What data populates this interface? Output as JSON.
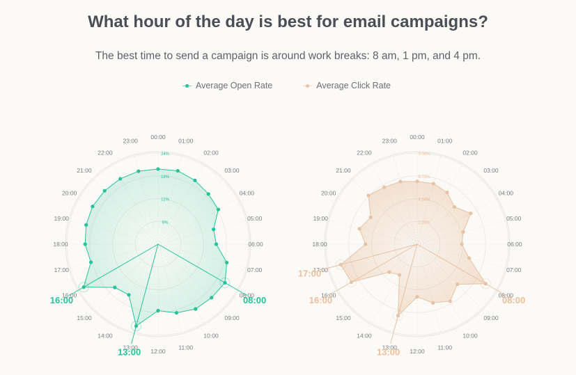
{
  "header": {
    "title": "What hour of the day is best for email campaigns?",
    "subtitle": "The best time to send a campaign is around work breaks: 8 am, 1 pm, and 4 pm."
  },
  "legend": [
    {
      "label": "Average Open Rate",
      "color": "#27c29a"
    },
    {
      "label": "Average Click Rate",
      "color": "#e6c3a6"
    }
  ],
  "chart_data": [
    {
      "type": "radar",
      "series_name": "Average Open Rate",
      "color": "#27c29a",
      "label_color": "#27c29a",
      "categories": [
        "00:00",
        "01:00",
        "02:00",
        "03:00",
        "04:00",
        "05:00",
        "06:00",
        "07:00",
        "08:00",
        "09:00",
        "10:00",
        "11:00",
        "12:00",
        "13:00",
        "14:00",
        "15:00",
        "16:00",
        "17:00",
        "18:00",
        "19:00",
        "20:00",
        "21:00",
        "22:00",
        "23:00"
      ],
      "values": [
        19.8,
        20.0,
        19.4,
        18.7,
        18.3,
        15.1,
        15.3,
        18.7,
        20.3,
        19.9,
        19.7,
        18.7,
        17.5,
        22.3,
        15.4,
        16.1,
        22.6,
        18.3,
        19.2,
        19.6,
        19.9,
        19.9,
        19.9,
        19.9
      ],
      "unit": "%",
      "rmax": 24,
      "ticks": [
        "6%",
        "12%",
        "18%",
        "24%"
      ],
      "tick_values": [
        6,
        12,
        18,
        24
      ],
      "highlights": [
        "08:00",
        "13:00",
        "16:00"
      ]
    },
    {
      "type": "radar",
      "series_name": "Average Click Rate",
      "color": "#e6c3a6",
      "label_color": "#eebf9c",
      "categories": [
        "00:00",
        "01:00",
        "02:00",
        "03:00",
        "04:00",
        "05:00",
        "06:00",
        "07:00",
        "08:00",
        "09:00",
        "10:00",
        "11:00",
        "12:00",
        "13:00",
        "14:00",
        "15:00",
        "16:00",
        "17:00",
        "18:00",
        "19:00",
        "20:00",
        "21:00",
        "22:00",
        "23:00"
      ],
      "values": [
        6.2,
        6.2,
        5.9,
        5.2,
        6.1,
        4.7,
        4.4,
        5.3,
        7.8,
        5.6,
        6.5,
        6.0,
        5.2,
        7.3,
        3.5,
        3.9,
        7.5,
        7.8,
        5.1,
        5.9,
        5.3,
        6.8,
        6.5,
        6.4
      ],
      "unit": "%",
      "rmax": 9,
      "ticks": [
        "2.25%",
        "4.50%",
        "6.75%",
        "9.00%"
      ],
      "tick_values": [
        2.25,
        4.5,
        6.75,
        9
      ],
      "highlights": [
        "08:00",
        "13:00",
        "16:00",
        "17:00"
      ]
    }
  ]
}
